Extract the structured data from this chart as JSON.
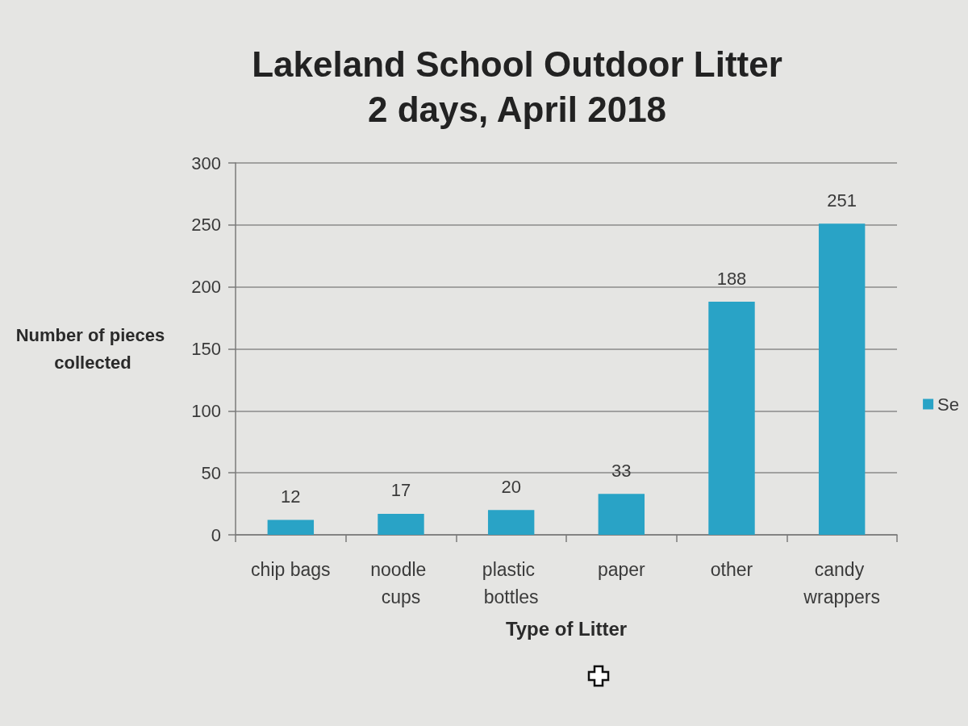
{
  "chart_data": {
    "type": "bar",
    "title": "Lakeland School Outdoor Litter",
    "subtitle": "2 days, April 2018",
    "xlabel": "Type of Litter",
    "ylabel": "Number of pieces collected",
    "categories": [
      "chip bags",
      "noodle cups",
      "plastic bottles",
      "paper",
      "other",
      "candy wrappers"
    ],
    "series": [
      {
        "name": "Se",
        "color": "#29a3c6",
        "values": [
          12,
          17,
          20,
          33,
          188,
          251
        ]
      }
    ],
    "ylim": [
      0,
      300
    ],
    "yticks": [
      0,
      50,
      100,
      150,
      200,
      250,
      300
    ],
    "grid": "y",
    "legend": "right",
    "data_labels": true
  }
}
